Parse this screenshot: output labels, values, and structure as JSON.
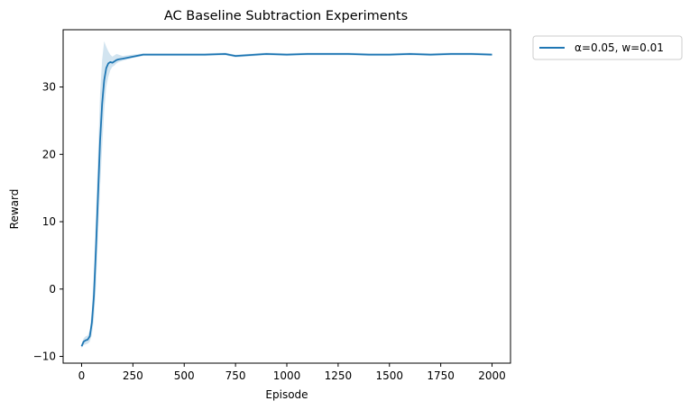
{
  "chart_data": {
    "type": "line",
    "title": "AC Baseline Subtraction Experiments",
    "xlabel": "Episode",
    "ylabel": "Reward",
    "xlim": [
      -90,
      2090
    ],
    "ylim": [
      -11,
      38.5
    ],
    "xticks": [
      0,
      250,
      500,
      750,
      1000,
      1250,
      1500,
      1750,
      2000
    ],
    "yticks": [
      -10,
      0,
      10,
      20,
      30
    ],
    "grid": false,
    "legend_position": "outside-top-right",
    "series": [
      {
        "name": "α=0.05, w=0.01",
        "color": "#1f77b4",
        "band_color": "#1f77b4",
        "band_opacity": 0.2,
        "x": [
          0,
          10,
          20,
          30,
          40,
          50,
          60,
          70,
          80,
          90,
          100,
          110,
          120,
          130,
          140,
          150,
          160,
          170,
          180,
          200,
          250,
          300,
          400,
          500,
          600,
          700,
          750,
          800,
          900,
          1000,
          1100,
          1200,
          1300,
          1400,
          1500,
          1600,
          1700,
          1800,
          1900,
          2000
        ],
        "y": [
          -8.5,
          -7.8,
          -7.6,
          -7.5,
          -7.0,
          -5.0,
          -1.0,
          6.0,
          14.0,
          22.0,
          27.5,
          31.0,
          32.8,
          33.5,
          33.7,
          33.6,
          33.8,
          34.0,
          34.1,
          34.2,
          34.5,
          34.8,
          34.8,
          34.8,
          34.8,
          34.9,
          34.6,
          34.7,
          34.9,
          34.8,
          34.9,
          34.9,
          34.9,
          34.8,
          34.8,
          34.9,
          34.8,
          34.9,
          34.9,
          34.8
        ],
        "y_low": [
          -8.8,
          -8.3,
          -8.2,
          -8.1,
          -7.8,
          -6.8,
          -4.5,
          0.5,
          8.0,
          15.0,
          21.0,
          26.5,
          30.0,
          31.5,
          32.5,
          33.0,
          33.2,
          33.5,
          33.7,
          33.9,
          34.3,
          34.6,
          34.6,
          34.6,
          34.6,
          34.7,
          34.4,
          34.5,
          34.7,
          34.6,
          34.7,
          34.7,
          34.7,
          34.6,
          34.6,
          34.7,
          34.6,
          34.7,
          34.7,
          34.6
        ],
        "y_high": [
          -8.2,
          -7.3,
          -7.0,
          -6.9,
          -6.1,
          -3.0,
          2.5,
          11.5,
          20.0,
          29.0,
          34.0,
          36.8,
          36.0,
          35.3,
          34.8,
          34.5,
          34.7,
          34.9,
          34.8,
          34.6,
          34.8,
          35.0,
          35.0,
          35.0,
          35.0,
          35.1,
          34.8,
          34.9,
          35.1,
          35.0,
          35.1,
          35.1,
          35.1,
          35.0,
          35.0,
          35.1,
          35.0,
          35.1,
          35.1,
          35.0
        ]
      }
    ]
  }
}
